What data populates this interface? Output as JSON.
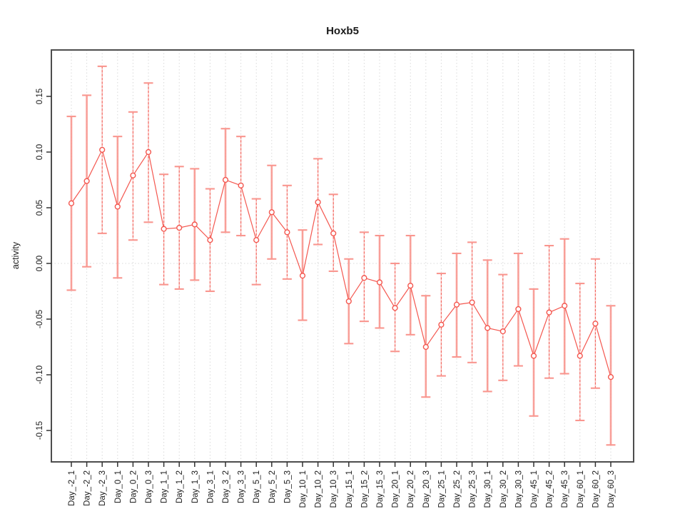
{
  "chart_data": {
    "type": "line",
    "title": "Hoxb5",
    "xlabel": "",
    "ylabel": "activity",
    "legend": "none",
    "grid": "vertical dotted gridline at every category; dotted horizontal line at y=0",
    "marker": "open-circle",
    "error_bars": true,
    "ylim": [
      -0.178,
      0.192
    ],
    "y_ticks": [
      0.15,
      0.1,
      0.05,
      0.0,
      -0.05,
      -0.1,
      -0.15
    ],
    "y_tick_labels": [
      "0.15",
      "0.10",
      "0.05",
      "0.00",
      "-0.05",
      "-0.10",
      "-0.15"
    ],
    "categories": [
      "Day_-2_1",
      "Day_-2_2",
      "Day_-2_3",
      "Day_0_1",
      "Day_0_2",
      "Day_0_3",
      "Day_1_1",
      "Day_1_2",
      "Day_1_3",
      "Day_3_1",
      "Day_3_2",
      "Day_3_3",
      "Day_5_1",
      "Day_5_2",
      "Day_5_3",
      "Day_10_1",
      "Day_10_2",
      "Day_10_3",
      "Day_15_1",
      "Day_15_2",
      "Day_15_3",
      "Day_20_1",
      "Day_20_2",
      "Day_20_3",
      "Day_25_1",
      "Day_25_2",
      "Day_25_3",
      "Day_30_1",
      "Day_30_2",
      "Day_30_3",
      "Day_45_1",
      "Day_45_2",
      "Day_45_3",
      "Day_60_1",
      "Day_60_2",
      "Day_60_3"
    ],
    "series": [
      {
        "name": "activity",
        "values": [
          0.054,
          0.074,
          0.102,
          0.051,
          0.079,
          0.1,
          0.031,
          0.032,
          0.035,
          0.021,
          0.075,
          0.07,
          0.021,
          0.046,
          0.028,
          -0.011,
          0.055,
          0.027,
          -0.034,
          -0.013,
          -0.017,
          -0.04,
          -0.02,
          -0.075,
          -0.055,
          -0.037,
          -0.035,
          -0.058,
          -0.061,
          -0.041,
          -0.083,
          -0.044,
          -0.038,
          -0.083,
          -0.054,
          -0.102
        ],
        "error_low": [
          -0.024,
          -0.003,
          0.027,
          -0.013,
          0.021,
          0.037,
          -0.019,
          -0.023,
          -0.015,
          -0.025,
          0.028,
          0.025,
          -0.019,
          0.004,
          -0.014,
          -0.051,
          0.017,
          -0.007,
          -0.072,
          -0.052,
          -0.058,
          -0.079,
          -0.064,
          -0.12,
          -0.101,
          -0.084,
          -0.089,
          -0.115,
          -0.105,
          -0.092,
          -0.137,
          -0.103,
          -0.099,
          -0.141,
          -0.112,
          -0.163
        ],
        "error_high": [
          0.132,
          0.151,
          0.177,
          0.114,
          0.136,
          0.162,
          0.08,
          0.087,
          0.085,
          0.067,
          0.121,
          0.114,
          0.058,
          0.088,
          0.07,
          0.03,
          0.094,
          0.062,
          0.004,
          0.028,
          0.025,
          0.0,
          0.025,
          -0.029,
          -0.009,
          0.009,
          0.019,
          0.003,
          -0.01,
          0.009,
          -0.023,
          0.016,
          0.022,
          -0.018,
          0.004,
          -0.038
        ],
        "error_bar_line_styles": [
          "solid",
          "solid",
          "dashed",
          "solid",
          "dashed",
          "dashed",
          "dashed",
          "dashed",
          "solid",
          "dashed",
          "solid",
          "dashed",
          "dashed",
          "solid",
          "dashed",
          "solid",
          "dashed",
          "dashed",
          "solid",
          "dashed",
          "solid",
          "dashed",
          "solid",
          "solid",
          "dashed",
          "solid",
          "dashed",
          "solid",
          "dashed",
          "solid",
          "solid",
          "dashed",
          "solid",
          "dashed",
          "dashed",
          "solid"
        ]
      }
    ],
    "colors": {
      "line": "#f4574f",
      "marker_stroke": "#f4574f",
      "marker_fill": "#ffffff",
      "error_bar": "#f9968f",
      "error_bar_dashed": "#f4574f",
      "gridline": "#d9d9d9",
      "axis_box": "#4d4d4d",
      "tick": "#333333",
      "text": "#1a1a1a"
    }
  }
}
